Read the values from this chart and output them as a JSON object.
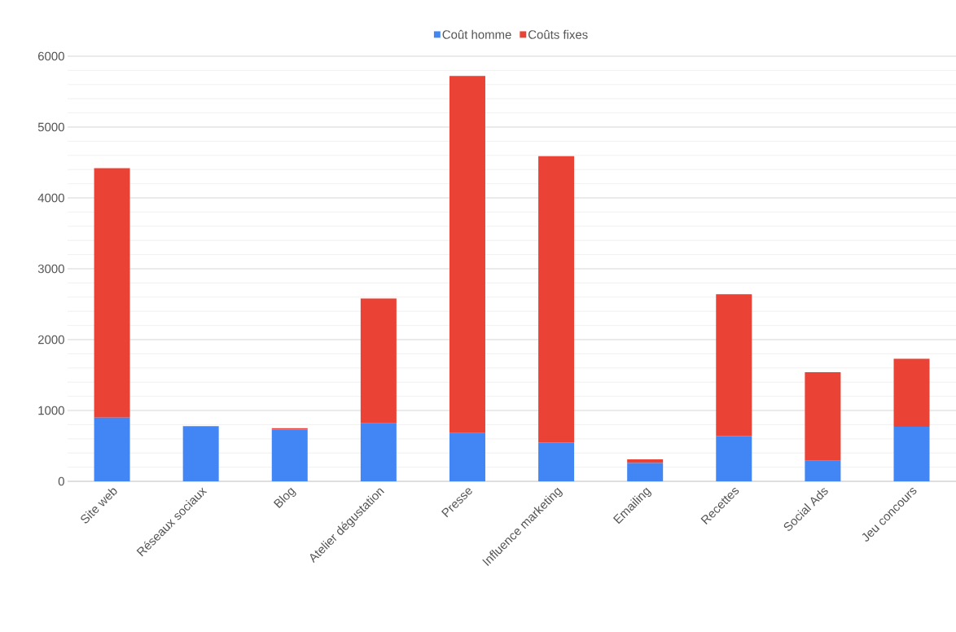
{
  "chart_data": {
    "type": "bar",
    "stacked": true,
    "categories": [
      "Site web",
      "Réseaux sociaux",
      "Blog",
      "Atelier dégustation",
      "Presse",
      "Influence marketing",
      "Emailing",
      "Recettes",
      "Social Ads",
      "Jeu concours"
    ],
    "series": [
      {
        "name": "Coût homme",
        "color": "#4285f4",
        "values": [
          900,
          780,
          730,
          820,
          680,
          550,
          260,
          640,
          290,
          770
        ]
      },
      {
        "name": "Coûts fixes",
        "color": "#ea4335",
        "values": [
          3520,
          null,
          20,
          1760,
          5040,
          4040,
          50,
          2000,
          1250,
          960
        ]
      }
    ],
    "ylim": [
      0,
      6000
    ],
    "yticks": [
      0,
      1000,
      2000,
      3000,
      4000,
      5000,
      6000
    ],
    "grid": "y",
    "legend": "top"
  }
}
